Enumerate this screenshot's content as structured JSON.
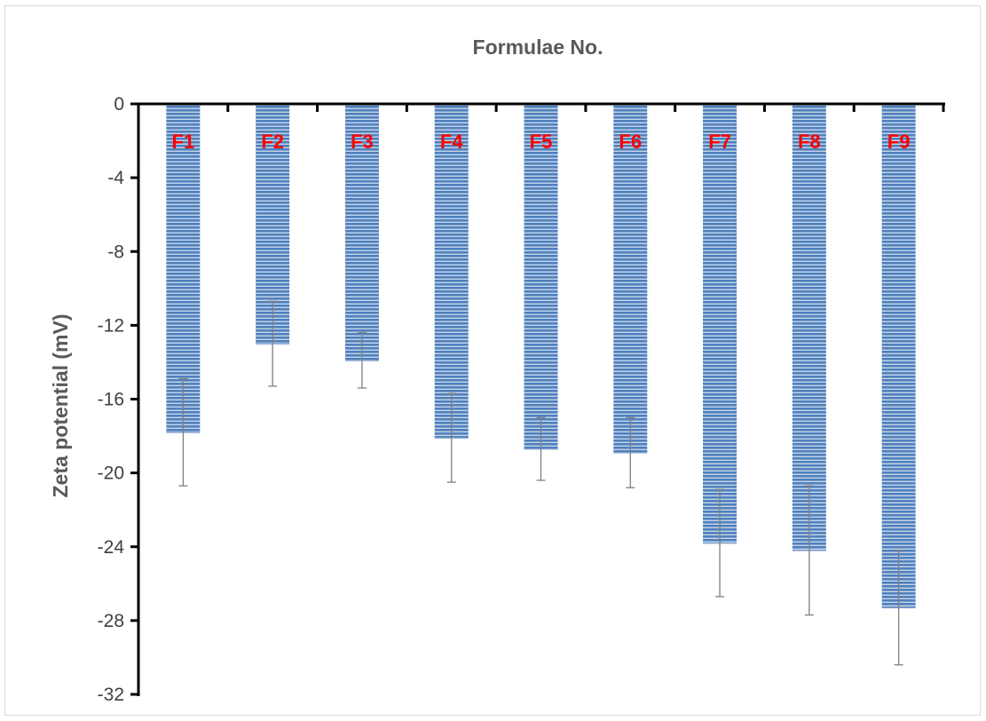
{
  "chart_data": {
    "type": "bar",
    "title": "Formulae No.",
    "xlabel": "Formulae No.",
    "ylabel": "Zeta potential (mV)",
    "categories": [
      "F1",
      "F2",
      "F3",
      "F4",
      "F5",
      "F6",
      "F7",
      "F8",
      "F9"
    ],
    "values": [
      -17.8,
      -13.0,
      -13.9,
      -18.1,
      -18.7,
      -18.9,
      -23.8,
      -24.2,
      -27.3
    ],
    "error": [
      2.9,
      2.3,
      1.5,
      2.4,
      1.7,
      1.9,
      2.9,
      3.5,
      3.1
    ],
    "ylim": [
      -32,
      0
    ],
    "yticks": [
      "0",
      "-4",
      "-8",
      "-12",
      "-16",
      "-20",
      "-24",
      "-28",
      "-32"
    ],
    "xaxis_position": "top",
    "grid": false,
    "legend": "none",
    "colors": {
      "bar": "#4f81bd",
      "bar_stripe": "#ffffff",
      "error_bar": "#7f7f7f",
      "category_label": "#ff0000",
      "axis": "#000000"
    }
  }
}
